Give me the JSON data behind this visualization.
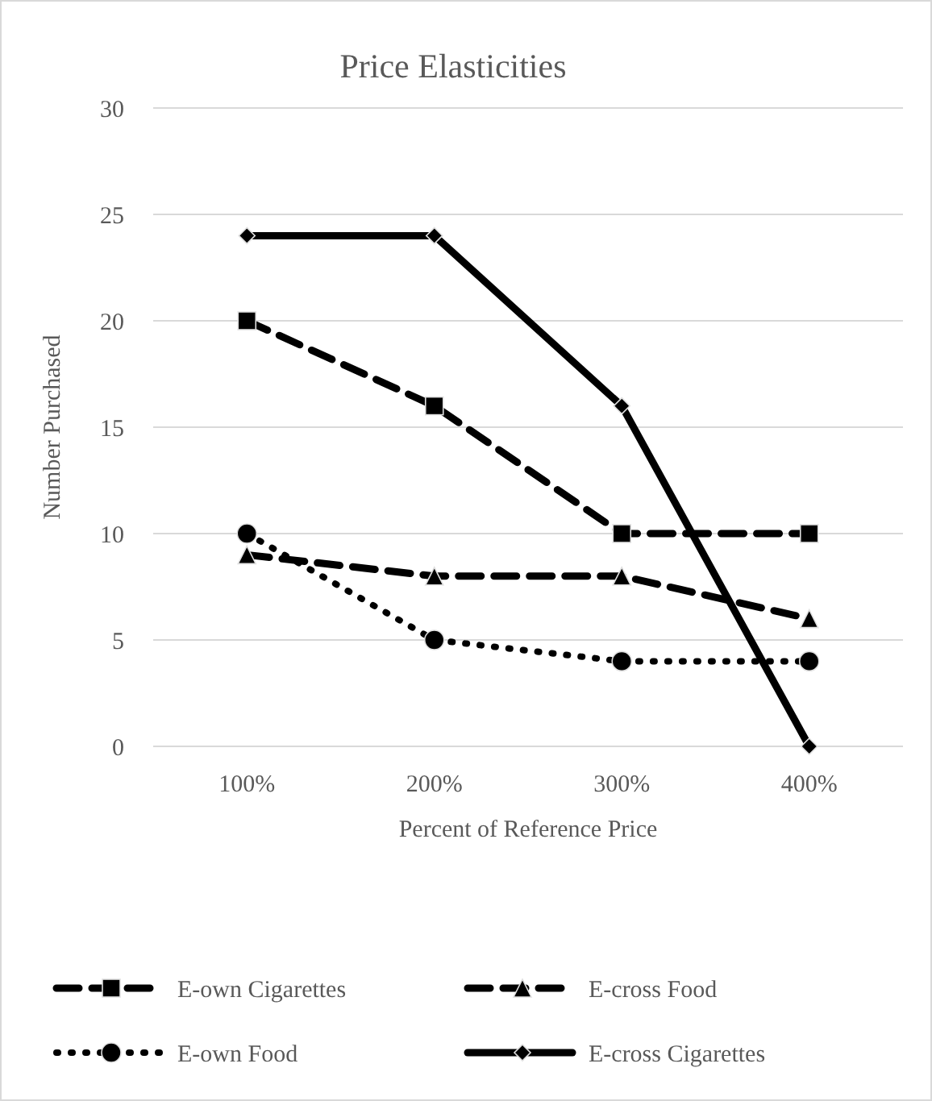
{
  "chart_data": {
    "type": "line",
    "title": "Price Elasticities",
    "xlabel": "Percent of Reference Price",
    "ylabel": "Number Purchased",
    "categories": [
      "100%",
      "200%",
      "300%",
      "400%"
    ],
    "series": [
      {
        "name": "E-own Cigarettes",
        "color": "#000000",
        "values": [
          20,
          16,
          10,
          10
        ],
        "marker": "square",
        "line_style": "dashed"
      },
      {
        "name": "E-cross Food",
        "color": "#000000",
        "values": [
          9,
          8,
          8,
          6
        ],
        "marker": "triangle",
        "line_style": "dashed"
      },
      {
        "name": "E-own Food",
        "color": "#000000",
        "values": [
          10,
          5,
          4,
          4
        ],
        "marker": "circle",
        "line_style": "dotted"
      },
      {
        "name": "E-cross Cigarettes",
        "color": "#000000",
        "values": [
          24,
          24,
          16,
          0
        ],
        "marker": "diamond",
        "line_style": "solid"
      }
    ],
    "ylim": [
      0,
      30
    ],
    "yticks": [
      0,
      5,
      10,
      15,
      20,
      25,
      30
    ],
    "grid": "y",
    "legend": "bottom"
  }
}
